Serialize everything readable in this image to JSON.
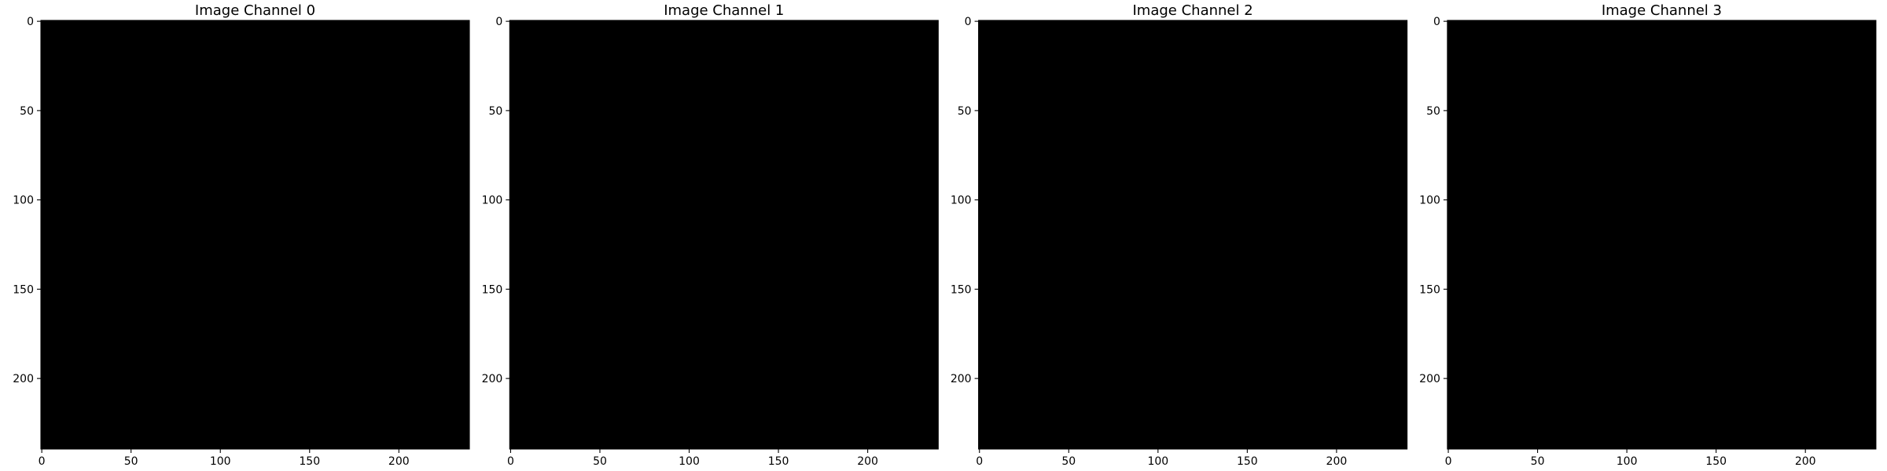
{
  "chart_data": [
    {
      "type": "heatmap",
      "title": "Image Channel 0",
      "xlabel": "",
      "ylabel": "",
      "xlim": [
        -0.5,
        239.5
      ],
      "ylim": [
        239.5,
        -0.5
      ],
      "xticks": [
        0,
        50,
        100,
        150,
        200
      ],
      "yticks": [
        0,
        50,
        100,
        150,
        200
      ],
      "xtick_labels": [
        "0",
        "50",
        "100",
        "150",
        "200"
      ],
      "ytick_labels": [
        "0",
        "50",
        "100",
        "150",
        "200"
      ],
      "image_size": [
        240,
        240
      ],
      "pixel_value": 0,
      "fill_color": "#000000",
      "grid": false
    },
    {
      "type": "heatmap",
      "title": "Image Channel 1",
      "xlabel": "",
      "ylabel": "",
      "xlim": [
        -0.5,
        239.5
      ],
      "ylim": [
        239.5,
        -0.5
      ],
      "xticks": [
        0,
        50,
        100,
        150,
        200
      ],
      "yticks": [
        0,
        50,
        100,
        150,
        200
      ],
      "xtick_labels": [
        "0",
        "50",
        "100",
        "150",
        "200"
      ],
      "ytick_labels": [
        "0",
        "50",
        "100",
        "150",
        "200"
      ],
      "image_size": [
        240,
        240
      ],
      "pixel_value": 0,
      "fill_color": "#000000",
      "grid": false
    },
    {
      "type": "heatmap",
      "title": "Image Channel 2",
      "xlabel": "",
      "ylabel": "",
      "xlim": [
        -0.5,
        239.5
      ],
      "ylim": [
        239.5,
        -0.5
      ],
      "xticks": [
        0,
        50,
        100,
        150,
        200
      ],
      "yticks": [
        0,
        50,
        100,
        150,
        200
      ],
      "xtick_labels": [
        "0",
        "50",
        "100",
        "150",
        "200"
      ],
      "ytick_labels": [
        "0",
        "50",
        "100",
        "150",
        "200"
      ],
      "image_size": [
        240,
        240
      ],
      "pixel_value": 0,
      "fill_color": "#000000",
      "grid": false
    },
    {
      "type": "heatmap",
      "title": "Image Channel 3",
      "xlabel": "",
      "ylabel": "",
      "xlim": [
        -0.5,
        239.5
      ],
      "ylim": [
        239.5,
        -0.5
      ],
      "xticks": [
        0,
        50,
        100,
        150,
        200
      ],
      "yticks": [
        0,
        50,
        100,
        150,
        200
      ],
      "xtick_labels": [
        "0",
        "50",
        "100",
        "150",
        "200"
      ],
      "ytick_labels": [
        "0",
        "50",
        "100",
        "150",
        "200"
      ],
      "image_size": [
        240,
        240
      ],
      "pixel_value": 0,
      "fill_color": "#000000",
      "grid": false
    }
  ]
}
